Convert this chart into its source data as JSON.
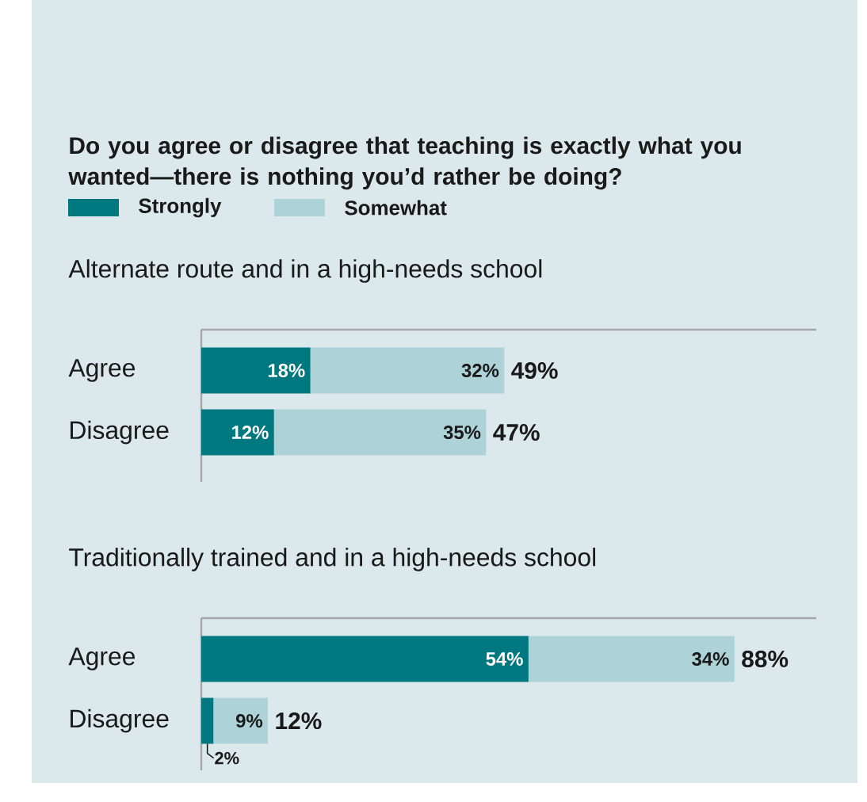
{
  "chart_data": [
    {
      "type": "bar",
      "orientation": "horizontal",
      "stacked": true,
      "title": "Do you agree or disagree that teaching is exactly what you wanted—there is nothing you’d rather be doing?",
      "subtitle": "Alternate route and in a high-needs school",
      "categories": [
        "Agree",
        "Disagree"
      ],
      "legend": "top left",
      "totals": [
        "49%",
        "47%"
      ],
      "series": [
        {
          "name": "Strongly",
          "color": "#00787f",
          "values": [
            18,
            12
          ],
          "value_labels": [
            "18%",
            "12%"
          ]
        },
        {
          "name": "Somewhat",
          "color": "#add3d8",
          "values": [
            32,
            35
          ],
          "value_labels": [
            "32%",
            "35%"
          ]
        }
      ]
    },
    {
      "type": "bar",
      "orientation": "horizontal",
      "stacked": true,
      "title": "Traditionally trained and in a high-needs school",
      "categories": [
        "Agree",
        "Disagree"
      ],
      "totals": [
        "88%",
        "12%"
      ],
      "series": [
        {
          "color": "#00787f",
          "values": [
            54,
            2
          ],
          "value_labels": [
            "54%",
            "2%"
          ]
        },
        {
          "color": "#add3d8",
          "values": [
            34,
            9
          ],
          "value_labels": [
            "34%",
            "9%"
          ]
        }
      ]
    }
  ]
}
